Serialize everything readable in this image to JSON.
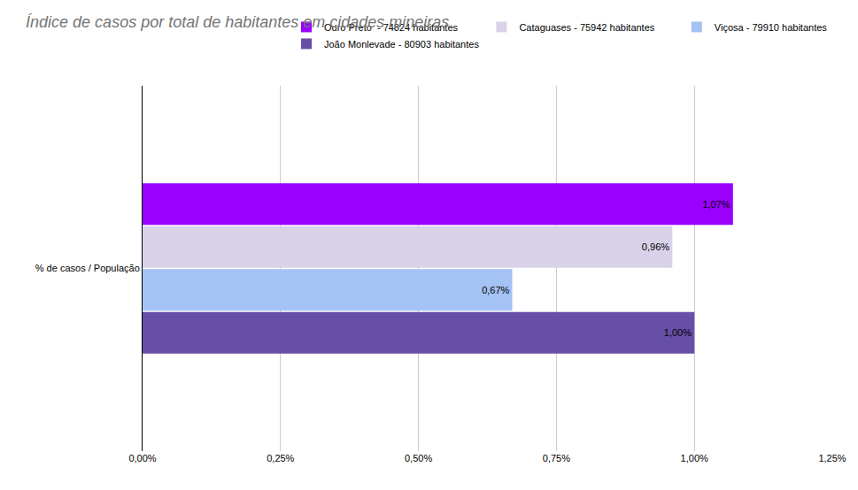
{
  "chart_data": {
    "type": "bar",
    "orientation": "horizontal",
    "title": "Índice de casos por total de habitantes em cidades mineiras",
    "categories": [
      "% de casos / População"
    ],
    "series": [
      {
        "name": "Ouro Preto  - 74824 habitantes",
        "color": "#9900ff",
        "values": [
          1.07
        ],
        "value_labels": [
          "1,07%"
        ]
      },
      {
        "name": "Cataguases - 75942 habitantes",
        "color": "#d9d2e9",
        "values": [
          0.96
        ],
        "value_labels": [
          "0,96%"
        ]
      },
      {
        "name": "Viçosa - 79910 habitantes",
        "color": "#a4c2f4",
        "values": [
          0.67
        ],
        "value_labels": [
          "0,67%"
        ]
      },
      {
        "name": "João Monlevade - 80903 habitantes",
        "color": "#674ea7",
        "values": [
          1.0
        ],
        "value_labels": [
          "1,00%"
        ]
      }
    ],
    "xlim": [
      0,
      1.25
    ],
    "xticks": [
      {
        "value": 0,
        "label": "0,00%"
      },
      {
        "value": 0.25,
        "label": "0,25%"
      },
      {
        "value": 0.5,
        "label": "0,50%"
      },
      {
        "value": 0.75,
        "label": "0,75%"
      },
      {
        "value": 1.0,
        "label": "1,00%"
      },
      {
        "value": 1.25,
        "label": "1,25%"
      }
    ],
    "grid": true,
    "legend": "top",
    "data_labels": true
  }
}
